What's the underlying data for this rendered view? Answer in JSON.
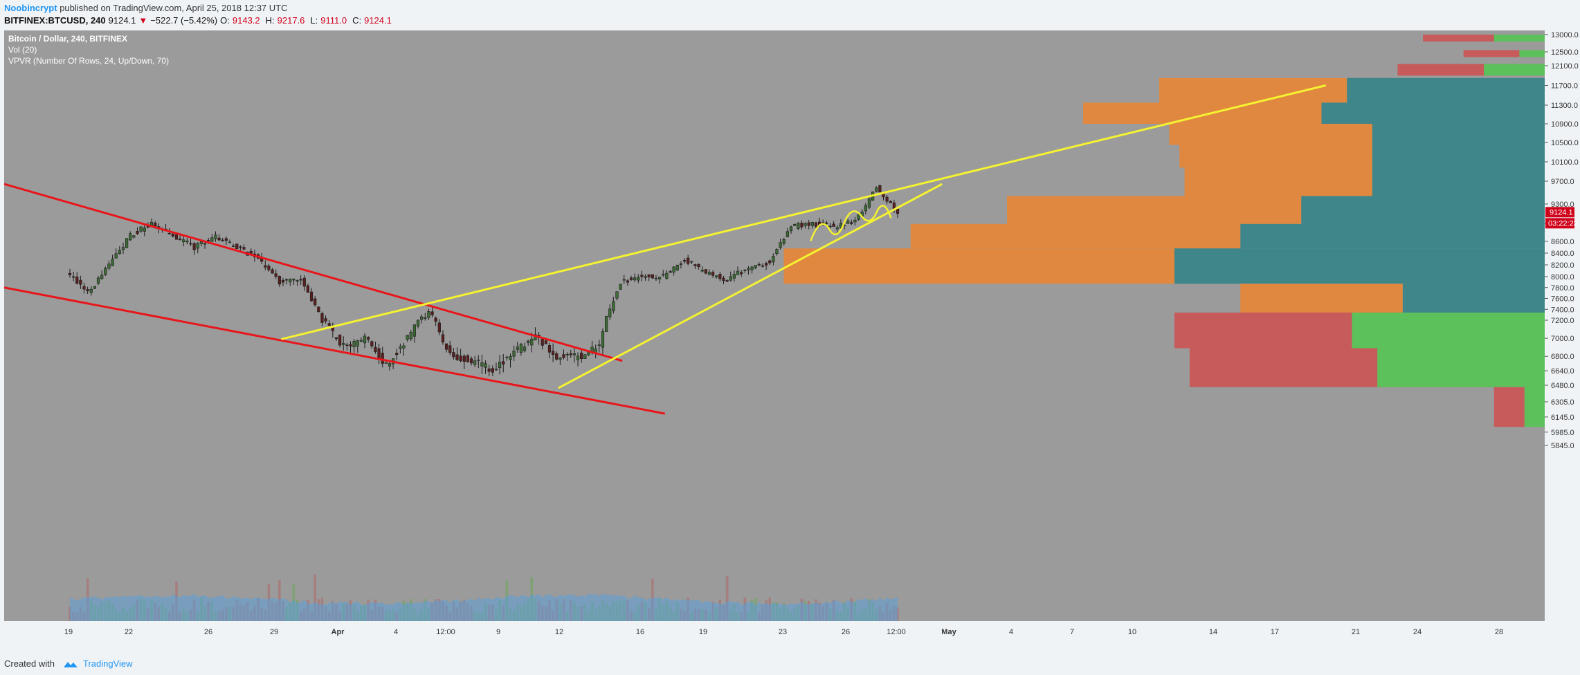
{
  "header": {
    "author": "Noobincrypt",
    "published_text": "published on TradingView.com, April 25, 2018 12:37 UTC",
    "symbol": "BITFINEX:BTCUSD, 240",
    "last": "9124.1",
    "change_arrow": "▼",
    "change": "−522.7 (−5.42%)",
    "open_label": "O:",
    "open": "9143.2",
    "high_label": "H:",
    "high": "9217.6",
    "low_label": "L:",
    "low": "9111.0",
    "close_label": "C:",
    "close": "9124.1"
  },
  "legend": {
    "title": "Bitcoin / Dollar, 240, BITFINEX",
    "volume": "Vol (20)",
    "vpvr": "VPVR (Number Of Rows, 24, Up/Down, 70)"
  },
  "footer": {
    "created_with": "Created with",
    "brand": "TradingView",
    "logo_icon": "tradingview-logo-icon"
  },
  "colors": {
    "plot_bg": "#9b9b9b",
    "up_candle": "#3c6b35",
    "down_candle": "#5a1f1f",
    "trend_red": "#e8161b",
    "trend_yellow": "#f5f231",
    "vp_orange": "#e0883f",
    "vp_teal": "#3e8689",
    "vp_red": "#c75a5a",
    "vp_green": "#5cc15a",
    "price_badge": "#d0021b",
    "volume_area": "#5b9fd8"
  },
  "chart_data": {
    "type": "candlestick",
    "symbol": "BTCUSD",
    "interval": "240",
    "exchange": "BITFINEX",
    "ylim": [
      5700,
      13050
    ],
    "y_ticks": [
      "13000.0",
      "12500.0",
      "12100.0",
      "11700.0",
      "11300.0",
      "10900.0",
      "10500.0",
      "10100.0",
      "9700.0",
      "9300.0",
      "8900.0",
      "8600.0",
      "8400.0",
      "8200.0",
      "8000.0",
      "7800.0",
      "7600.0",
      "7400.0",
      "7200.0",
      "7000.0",
      "6800.0",
      "6640.0",
      "6480.0",
      "6305.0",
      "6145.0",
      "5985.0",
      "5845.0"
    ],
    "x_ticks": [
      "19",
      "22",
      "26",
      "29",
      "Apr",
      "4",
      "12:00",
      "9",
      "12",
      "16",
      "19",
      "23",
      "26",
      "12:00",
      "May",
      "4",
      "7",
      "10",
      "14",
      "17",
      "21",
      "24",
      "28"
    ],
    "current_price": "9124.1",
    "countdown": "03:22:23",
    "price_path": [
      {
        "date": "2018-03-17",
        "close": 8100
      },
      {
        "date": "2018-03-18",
        "close": 7700
      },
      {
        "date": "2018-03-19",
        "close": 8200
      },
      {
        "date": "2018-03-20",
        "close": 8700
      },
      {
        "date": "2018-03-21",
        "close": 8900
      },
      {
        "date": "2018-03-22",
        "close": 8700
      },
      {
        "date": "2018-03-23",
        "close": 8500
      },
      {
        "date": "2018-03-24",
        "close": 8700
      },
      {
        "date": "2018-03-25",
        "close": 8500
      },
      {
        "date": "2018-03-26",
        "close": 8300
      },
      {
        "date": "2018-03-27",
        "close": 7900
      },
      {
        "date": "2018-03-28",
        "close": 7950
      },
      {
        "date": "2018-03-29",
        "close": 7200
      },
      {
        "date": "2018-03-30",
        "close": 6900
      },
      {
        "date": "2018-03-31",
        "close": 7000
      },
      {
        "date": "2018-04-01",
        "close": 6700
      },
      {
        "date": "2018-04-02",
        "close": 7000
      },
      {
        "date": "2018-04-03",
        "close": 7350
      },
      {
        "date": "2018-04-04",
        "close": 6800
      },
      {
        "date": "2018-04-05",
        "close": 6750
      },
      {
        "date": "2018-04-06",
        "close": 6650
      },
      {
        "date": "2018-04-07",
        "close": 6850
      },
      {
        "date": "2018-04-08",
        "close": 7000
      },
      {
        "date": "2018-04-09",
        "close": 6800
      },
      {
        "date": "2018-04-10",
        "close": 6800
      },
      {
        "date": "2018-04-11",
        "close": 6900
      },
      {
        "date": "2018-04-12",
        "close": 7900
      },
      {
        "date": "2018-04-13",
        "close": 8000
      },
      {
        "date": "2018-04-14",
        "close": 8000
      },
      {
        "date": "2018-04-15",
        "close": 8300
      },
      {
        "date": "2018-04-16",
        "close": 8050
      },
      {
        "date": "2018-04-17",
        "close": 7950
      },
      {
        "date": "2018-04-18",
        "close": 8150
      },
      {
        "date": "2018-04-19",
        "close": 8250
      },
      {
        "date": "2018-04-20",
        "close": 8850
      },
      {
        "date": "2018-04-21",
        "close": 8900
      },
      {
        "date": "2018-04-22",
        "close": 8850
      },
      {
        "date": "2018-04-23",
        "close": 8950
      },
      {
        "date": "2018-04-24",
        "close": 9600
      },
      {
        "date": "2018-04-25",
        "close": 9124
      }
    ],
    "volume_profile": [
      {
        "price_low": 12800,
        "price_high": 13000,
        "down": 0.14,
        "up": 0.1
      },
      {
        "price_low": 12350,
        "price_high": 12550,
        "down": 0.11,
        "up": 0.05
      },
      {
        "price_low": 11900,
        "price_high": 12150,
        "down": 0.17,
        "up": 0.12
      },
      {
        "price_low": 11350,
        "price_high": 11850,
        "down": 0.37,
        "up": 0.39
      },
      {
        "price_low": 10900,
        "price_high": 11350,
        "down": 0.47,
        "up": 0.44
      },
      {
        "price_low": 10450,
        "price_high": 10900,
        "down": 0.4,
        "up": 0.34
      },
      {
        "price_low": 9980,
        "price_high": 10450,
        "down": 0.38,
        "up": 0.34
      },
      {
        "price_low": 9440,
        "price_high": 9980,
        "down": 0.37,
        "up": 0.34
      },
      {
        "price_low": 8890,
        "price_high": 9440,
        "down": 0.58,
        "up": 0.48
      },
      {
        "price_low": 8480,
        "price_high": 8890,
        "down": 0.65,
        "up": 0.6
      },
      {
        "price_low": 7870,
        "price_high": 8480,
        "down": 0.77,
        "up": 0.73
      },
      {
        "price_low": 7340,
        "price_high": 7870,
        "down": 0.32,
        "up": 0.28
      },
      {
        "price_low": 6890,
        "price_high": 7340,
        "down": 0.35,
        "up": 0.38
      },
      {
        "price_low": 6460,
        "price_high": 6890,
        "down": 0.37,
        "up": 0.33
      },
      {
        "price_low": 6040,
        "price_high": 6460,
        "down": 0.06,
        "up": 0.04
      }
    ],
    "drawings": {
      "red_lines": [
        {
          "from": [
            "2018-03-14",
            9650
          ],
          "to": [
            "2018-04-12",
            6750
          ]
        },
        {
          "from": [
            "2018-03-14",
            7800
          ],
          "to": [
            "2018-04-14",
            6180
          ]
        }
      ],
      "yellow_lines": [
        {
          "from": [
            "2018-03-27",
            6990
          ],
          "to": [
            "2018-05-15",
            11700
          ]
        },
        {
          "from": [
            "2018-04-09",
            6450
          ],
          "to": [
            "2018-04-27",
            9650
          ]
        }
      ]
    }
  }
}
